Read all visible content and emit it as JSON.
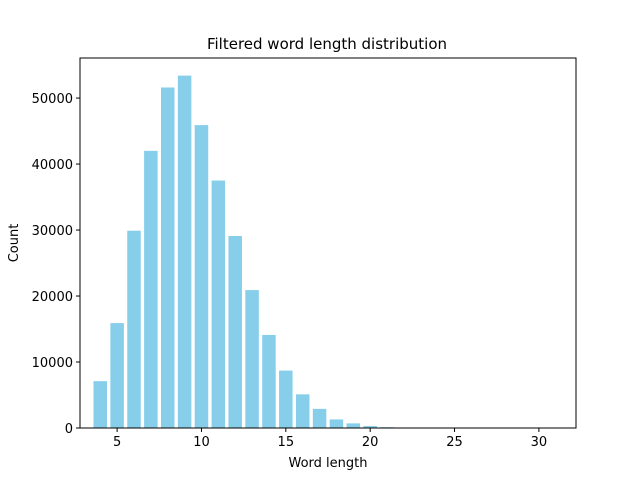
{
  "chart_data": {
    "type": "bar",
    "title": "Filtered word length distribution",
    "xlabel": "Word length",
    "ylabel": "Count",
    "x": [
      4,
      5,
      6,
      7,
      8,
      9,
      10,
      11,
      12,
      13,
      14,
      15,
      16,
      17,
      18,
      19,
      20,
      21,
      22,
      23,
      24,
      25,
      26,
      27,
      28,
      29,
      30,
      31
    ],
    "values": [
      7100,
      15900,
      29900,
      42000,
      51600,
      53400,
      45900,
      37500,
      29100,
      20900,
      14100,
      8700,
      5100,
      2900,
      1300,
      700,
      300,
      120,
      50,
      20,
      10,
      5,
      3,
      2,
      1,
      1,
      1,
      1
    ],
    "xlim": [
      2.8,
      32.2
    ],
    "ylim": [
      0,
      56070
    ],
    "xticks": [
      5,
      10,
      15,
      20,
      25,
      30
    ],
    "yticks": [
      0,
      10000,
      20000,
      30000,
      40000,
      50000
    ],
    "bar_color": "#87ceeb",
    "grid": false,
    "legend": "none"
  }
}
